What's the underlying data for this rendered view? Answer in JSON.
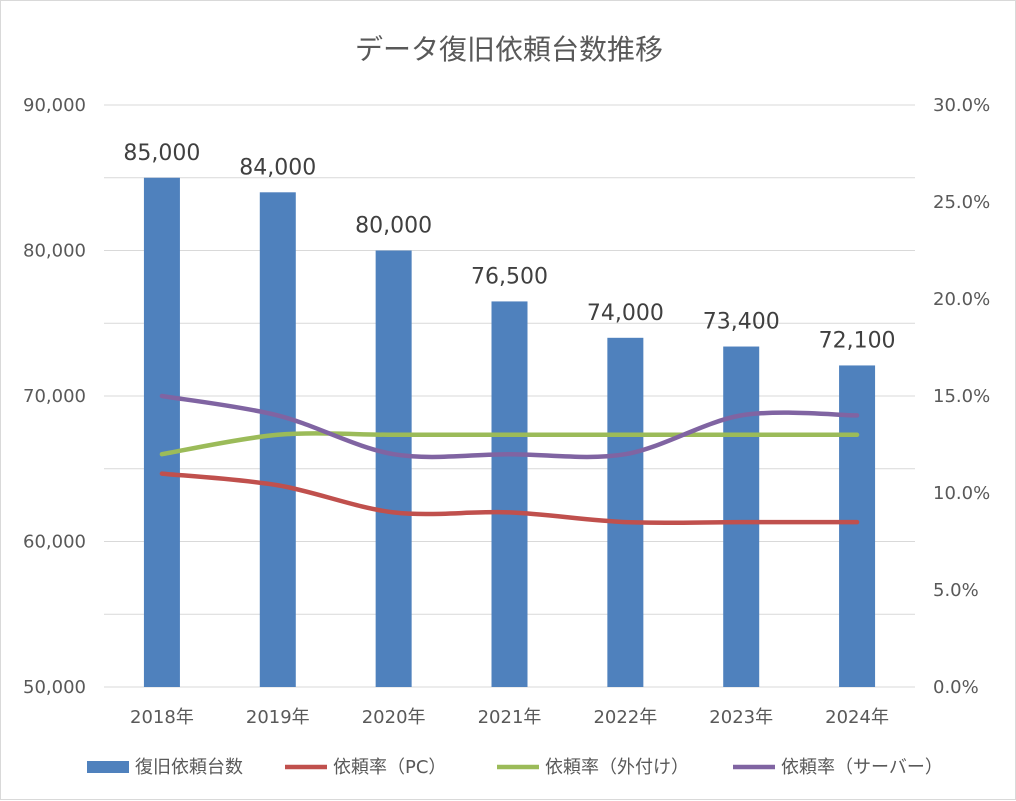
{
  "chart_data": {
    "type": "bar",
    "title": "データ復旧依頼台数推移",
    "categories": [
      "2018年",
      "2019年",
      "2020年",
      "2021年",
      "2022年",
      "2023年",
      "2024年"
    ],
    "bar_series": {
      "name": "復旧依頼台数",
      "values": [
        85000,
        84000,
        80000,
        76500,
        74000,
        73400,
        72100
      ],
      "data_labels": [
        "85,000",
        "84,000",
        "80,000",
        "76,500",
        "74,000",
        "73,400",
        "72,100"
      ],
      "color": "#4f81bd",
      "axis": "left"
    },
    "line_series": [
      {
        "name": "依頼率（PC）",
        "values": [
          0.11,
          0.104,
          0.09,
          0.09,
          0.085,
          0.085,
          0.085
        ],
        "color": "#c0504d",
        "axis": "right"
      },
      {
        "name": "依頼率（外付け）",
        "values": [
          0.12,
          0.13,
          0.13,
          0.13,
          0.13,
          0.13,
          0.13
        ],
        "color": "#9bbb59",
        "axis": "right"
      },
      {
        "name": "依頼率（サーバー）",
        "values": [
          0.15,
          0.14,
          0.12,
          0.12,
          0.12,
          0.14,
          0.14
        ],
        "color": "#8064a2",
        "axis": "right"
      }
    ],
    "y_left": {
      "ylim": [
        50000,
        90000
      ],
      "ticks": [
        50000,
        60000,
        70000,
        80000,
        90000
      ],
      "tick_labels": [
        "50,000",
        "60,000",
        "70,000",
        "80,000",
        "90,000"
      ]
    },
    "y_right": {
      "ylim": [
        0,
        0.3
      ],
      "ticks": [
        0,
        0.05,
        0.1,
        0.15,
        0.2,
        0.25,
        0.3
      ],
      "tick_labels": [
        "0.0%",
        "5.0%",
        "10.0%",
        "15.0%",
        "20.0%",
        "25.0%",
        "30.0%"
      ]
    },
    "grid": true,
    "legend_position": "bottom"
  },
  "colors": {
    "gridline": "#d9d9d9",
    "axis_text": "#595959"
  }
}
